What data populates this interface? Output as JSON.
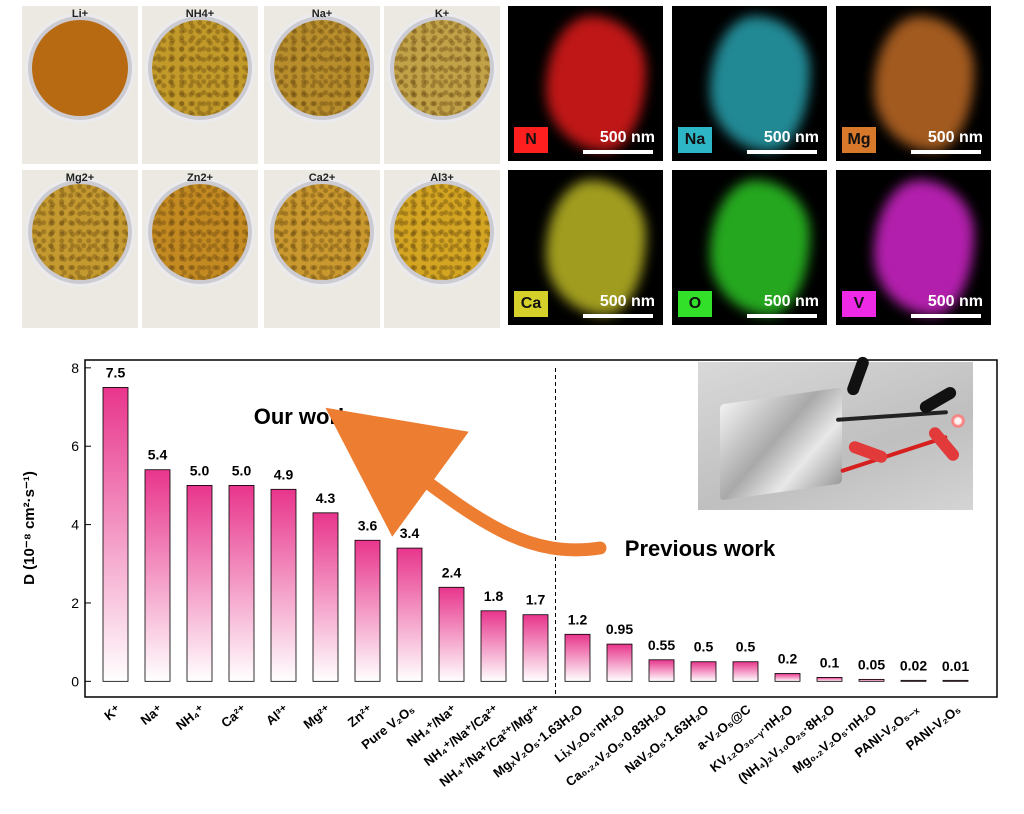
{
  "photos": {
    "labels": [
      "Li+",
      "NH4+",
      "Na+",
      "K+",
      "Mg2+",
      "Zn2+",
      "Ca2+",
      "Al3+"
    ],
    "colors": [
      "#b86a12",
      "#c29a2a",
      "#b88e2c",
      "#c2a248",
      "#c49a30",
      "#c48a22",
      "#c9982e",
      "#d3a522"
    ]
  },
  "maps": {
    "elements": [
      "N",
      "Na",
      "Mg",
      "Ca",
      "O",
      "V"
    ],
    "colors": [
      "#ff1f1f",
      "#2db7c6",
      "#d8782a",
      "#d6d12a",
      "#32e02a",
      "#ee2ae6"
    ],
    "scale_label": "500 nm"
  },
  "battery_photo": {
    "description_icon": "pouch-cell-led-icon"
  },
  "annotations": {
    "our_work": "Our work",
    "previous_work": "Previous work"
  },
  "chart_data": {
    "type": "bar",
    "categories": [
      "K⁺",
      "Na⁺",
      "NH₄⁺",
      "Ca²⁺",
      "Al³⁺",
      "Mg²⁺",
      "Zn²⁺",
      "Pure V₂O₅",
      "NH₄⁺/Na⁺",
      "NH₄⁺/Na⁺/Ca²⁺",
      "NH₄⁺/Na⁺/Ca²⁺/Mg²⁺",
      "MgₓV₂O₅·1.63H₂O",
      "LiₓV₂O₅·nH₂O",
      "Ca₀.₂₄V₂O₅·0.83H₂O",
      "NaV₂O₅·1.63H₂O",
      "a-V₂O₅@C",
      "KV₁₂O₃₀₋ᵧ·nH₂O",
      "(NH₄)₂V₁₀O₂₅·8H₂O",
      "Mg₀.₂V₂O₅·nH₂O",
      "PANI-V₂O₅₋ₓ",
      "PANI-V₂O₅"
    ],
    "values": [
      7.5,
      5.4,
      5.0,
      5.0,
      4.9,
      4.3,
      3.6,
      3.4,
      2.4,
      1.8,
      1.7,
      1.2,
      0.95,
      0.55,
      0.5,
      0.5,
      0.2,
      0.1,
      0.05,
      0.02,
      0.01
    ],
    "value_labels": [
      "7.5",
      "5.4",
      "5.0",
      "5.0",
      "4.9",
      "4.3",
      "3.6",
      "3.4",
      "2.4",
      "1.8",
      "1.7",
      "1.2",
      "0.95",
      "0.55",
      "0.5",
      "0.5",
      "0.2",
      "0.1",
      "0.05",
      "0.02",
      "0.01"
    ],
    "ylabel": "D (10⁻⁸ cm²·s⁻¹)",
    "ylim": [
      -0.4,
      8.2
    ],
    "yticks": [
      0,
      2,
      4,
      6,
      8
    ],
    "divider_after_index": 10,
    "bar_color_top": "#e8358c",
    "bar_color_bottom": "#ffffff"
  }
}
